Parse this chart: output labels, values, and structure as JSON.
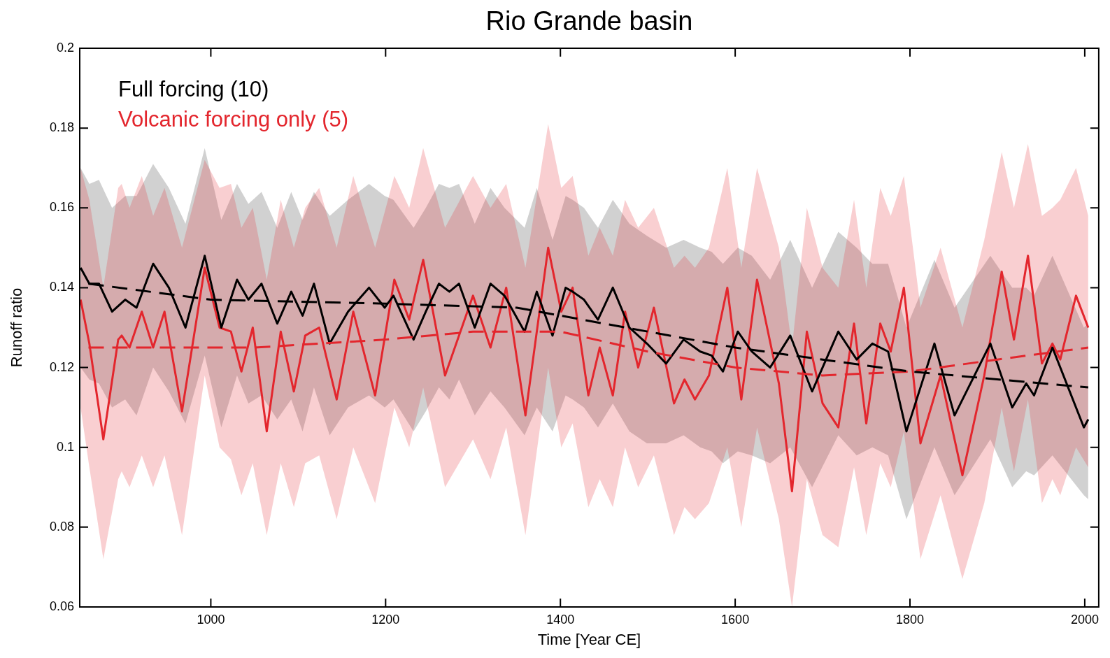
{
  "chart_data": {
    "type": "line",
    "title": "Rio Grande basin",
    "xlabel": "Time [Year CE]",
    "ylabel": "Runoff ratio",
    "xlim": [
      850,
      2016
    ],
    "xticks": [
      1000,
      1200,
      1400,
      1600,
      1800,
      2000
    ],
    "ylim": [
      0.06,
      0.2
    ],
    "yticks": [
      0.06,
      0.08,
      0.1,
      0.12,
      0.14,
      0.16,
      0.18,
      0.2
    ],
    "legend": "top left",
    "series": [
      {
        "name": "Full forcing (10)",
        "color": "#000000",
        "x": [
          851,
          861,
          872,
          887,
          902,
          915,
          934,
          952,
          971,
          993,
          1012,
          1030,
          1043,
          1058,
          1076,
          1092,
          1105,
          1118,
          1136,
          1157,
          1181,
          1199,
          1209,
          1232,
          1246,
          1261,
          1273,
          1284,
          1302,
          1320,
          1336,
          1359,
          1373,
          1391,
          1406,
          1414,
          1427,
          1443,
          1460,
          1479,
          1499,
          1521,
          1541,
          1560,
          1573,
          1586,
          1603,
          1619,
          1640,
          1663,
          1688,
          1718,
          1739,
          1757,
          1775,
          1796,
          1828,
          1851,
          1892,
          1917,
          1933,
          1942,
          1963,
          1999,
          2004
        ],
        "values": [
          0.145,
          0.141,
          0.141,
          0.134,
          0.137,
          0.135,
          0.146,
          0.14,
          0.13,
          0.148,
          0.13,
          0.142,
          0.137,
          0.141,
          0.131,
          0.139,
          0.133,
          0.141,
          0.126,
          0.134,
          0.14,
          0.135,
          0.138,
          0.127,
          0.134,
          0.141,
          0.139,
          0.141,
          0.13,
          0.141,
          0.138,
          0.129,
          0.139,
          0.128,
          0.14,
          0.139,
          0.137,
          0.132,
          0.14,
          0.13,
          0.126,
          0.121,
          0.127,
          0.124,
          0.123,
          0.119,
          0.129,
          0.124,
          0.12,
          0.128,
          0.114,
          0.129,
          0.122,
          0.126,
          0.124,
          0.104,
          0.126,
          0.108,
          0.126,
          0.11,
          0.116,
          0.113,
          0.125,
          0.105,
          0.107
        ],
        "upper": [
          0.17,
          0.166,
          0.167,
          0.16,
          0.163,
          0.163,
          0.171,
          0.165,
          0.156,
          0.175,
          0.157,
          0.166,
          0.161,
          0.164,
          0.155,
          0.164,
          0.157,
          0.164,
          0.158,
          0.162,
          0.166,
          0.163,
          0.162,
          0.155,
          0.16,
          0.166,
          0.165,
          0.166,
          0.156,
          0.165,
          0.16,
          0.155,
          0.165,
          0.152,
          0.163,
          0.162,
          0.16,
          0.155,
          0.162,
          0.156,
          0.153,
          0.15,
          0.152,
          0.15,
          0.149,
          0.146,
          0.15,
          0.148,
          0.142,
          0.152,
          0.14,
          0.154,
          0.15,
          0.146,
          0.146,
          0.13,
          0.147,
          0.135,
          0.148,
          0.14,
          0.14,
          0.138,
          0.148,
          0.13,
          0.131
        ],
        "lower": [
          0.12,
          0.117,
          0.116,
          0.11,
          0.112,
          0.108,
          0.12,
          0.114,
          0.106,
          0.123,
          0.105,
          0.118,
          0.111,
          0.113,
          0.107,
          0.112,
          0.104,
          0.115,
          0.103,
          0.11,
          0.113,
          0.11,
          0.112,
          0.104,
          0.109,
          0.115,
          0.112,
          0.117,
          0.108,
          0.114,
          0.11,
          0.103,
          0.11,
          0.104,
          0.113,
          0.112,
          0.11,
          0.105,
          0.111,
          0.104,
          0.101,
          0.101,
          0.103,
          0.1,
          0.099,
          0.096,
          0.099,
          0.098,
          0.096,
          0.1,
          0.09,
          0.103,
          0.098,
          0.1,
          0.098,
          0.082,
          0.1,
          0.088,
          0.102,
          0.09,
          0.094,
          0.093,
          0.098,
          0.088,
          0.087
        ]
      },
      {
        "name": "Volcanic forcing only (5)",
        "color": "#e3262d",
        "x": [
          851,
          861,
          877,
          894,
          898,
          907,
          921,
          934,
          947,
          967,
          993,
          1010,
          1023,
          1035,
          1048,
          1064,
          1080,
          1095,
          1108,
          1124,
          1144,
          1163,
          1188,
          1210,
          1227,
          1243,
          1268,
          1300,
          1320,
          1338,
          1360,
          1386,
          1401,
          1414,
          1432,
          1445,
          1460,
          1474,
          1489,
          1507,
          1530,
          1542,
          1554,
          1570,
          1591,
          1607,
          1625,
          1650,
          1665,
          1682,
          1700,
          1718,
          1736,
          1750,
          1766,
          1778,
          1793,
          1812,
          1835,
          1860,
          1885,
          1905,
          1919,
          1935,
          1951,
          1963,
          1972,
          1990,
          2004
        ],
        "values": [
          0.137,
          0.126,
          0.102,
          0.127,
          0.128,
          0.125,
          0.134,
          0.125,
          0.134,
          0.109,
          0.145,
          0.13,
          0.129,
          0.119,
          0.13,
          0.104,
          0.129,
          0.114,
          0.128,
          0.13,
          0.112,
          0.134,
          0.113,
          0.142,
          0.132,
          0.147,
          0.118,
          0.138,
          0.125,
          0.14,
          0.108,
          0.15,
          0.134,
          0.14,
          0.113,
          0.125,
          0.113,
          0.134,
          0.12,
          0.135,
          0.111,
          0.117,
          0.112,
          0.118,
          0.14,
          0.112,
          0.142,
          0.116,
          0.089,
          0.129,
          0.111,
          0.105,
          0.131,
          0.106,
          0.131,
          0.124,
          0.14,
          0.101,
          0.118,
          0.093,
          0.118,
          0.144,
          0.127,
          0.148,
          0.121,
          0.126,
          0.122,
          0.138,
          0.13
        ],
        "upper": [
          0.17,
          0.162,
          0.14,
          0.165,
          0.166,
          0.16,
          0.168,
          0.158,
          0.165,
          0.15,
          0.172,
          0.165,
          0.166,
          0.155,
          0.16,
          0.142,
          0.162,
          0.15,
          0.16,
          0.165,
          0.15,
          0.168,
          0.15,
          0.168,
          0.16,
          0.175,
          0.155,
          0.168,
          0.16,
          0.166,
          0.145,
          0.181,
          0.165,
          0.168,
          0.148,
          0.155,
          0.148,
          0.162,
          0.155,
          0.16,
          0.145,
          0.148,
          0.145,
          0.15,
          0.17,
          0.145,
          0.17,
          0.15,
          0.125,
          0.16,
          0.145,
          0.14,
          0.162,
          0.14,
          0.165,
          0.158,
          0.168,
          0.135,
          0.15,
          0.13,
          0.152,
          0.174,
          0.16,
          0.176,
          0.158,
          0.16,
          0.162,
          0.17,
          0.158
        ],
        "lower": [
          0.11,
          0.095,
          0.072,
          0.092,
          0.094,
          0.09,
          0.098,
          0.09,
          0.098,
          0.078,
          0.118,
          0.1,
          0.097,
          0.088,
          0.096,
          0.078,
          0.096,
          0.085,
          0.096,
          0.098,
          0.082,
          0.1,
          0.086,
          0.11,
          0.1,
          0.115,
          0.09,
          0.102,
          0.092,
          0.105,
          0.078,
          0.12,
          0.1,
          0.106,
          0.085,
          0.092,
          0.085,
          0.1,
          0.09,
          0.098,
          0.078,
          0.085,
          0.082,
          0.086,
          0.1,
          0.08,
          0.105,
          0.082,
          0.06,
          0.092,
          0.078,
          0.075,
          0.095,
          0.078,
          0.096,
          0.09,
          0.104,
          0.072,
          0.088,
          0.067,
          0.086,
          0.11,
          0.094,
          0.112,
          0.086,
          0.092,
          0.088,
          0.1,
          0.095
        ]
      },
      {
        "type": "line",
        "line_style": "dashed",
        "color": "#000000",
        "x": [
          860,
          1000,
          1200,
          1350,
          1450,
          1600,
          1800,
          2004
        ],
        "values": [
          0.141,
          0.137,
          0.136,
          0.135,
          0.131,
          0.125,
          0.119,
          0.115
        ]
      },
      {
        "type": "line",
        "line_style": "dashed",
        "color": "#e3262d",
        "x": [
          860,
          1050,
          1200,
          1300,
          1400,
          1500,
          1600,
          1700,
          1800,
          1900,
          2004
        ],
        "values": [
          0.125,
          0.125,
          0.127,
          0.129,
          0.129,
          0.124,
          0.12,
          0.118,
          0.119,
          0.122,
          0.125
        ]
      }
    ]
  }
}
